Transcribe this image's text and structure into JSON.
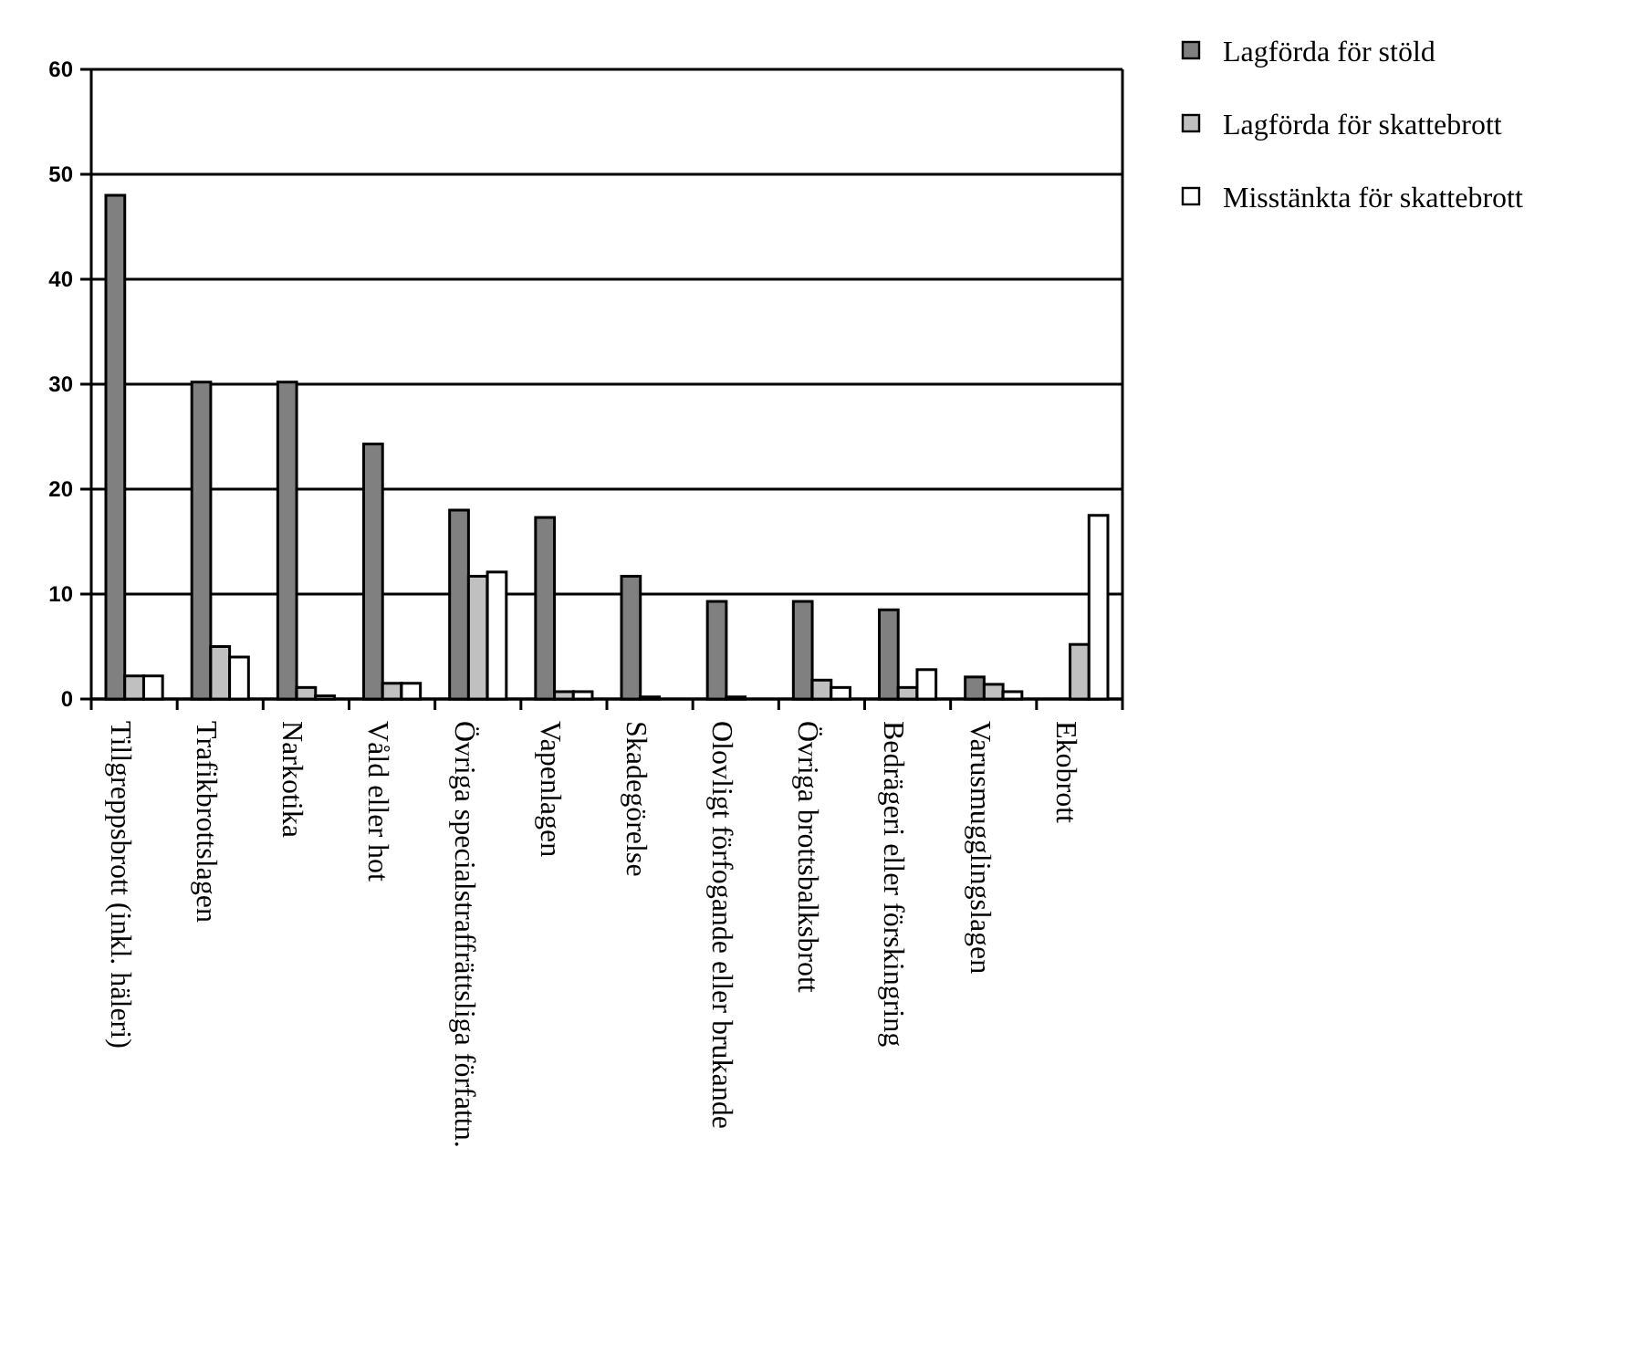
{
  "chart_data": {
    "type": "bar",
    "categories": [
      "Tillgreppsbrott (inkl. häleri)",
      "Trafikbrottslagen",
      "Narkotika",
      "Våld eller hot",
      "Övriga specialstraffrättsliga författn.",
      "Vapenlagen",
      "Skadegörelse",
      "Olovligt förfogande eller brukande",
      "Övriga brottsbalksbrott",
      "Bedrägeri eller förskingring",
      "Varusmugglingslagen",
      "Ekobrott"
    ],
    "series": [
      {
        "name": "Lagförda för stöld",
        "color": "#808080",
        "values": [
          48,
          30.2,
          30.2,
          24.3,
          18,
          17.3,
          11.7,
          9.3,
          9.3,
          8.5,
          2.1,
          0
        ]
      },
      {
        "name": "Lagförda för skattebrott",
        "color": "#c0c0c0",
        "values": [
          2.2,
          5,
          1.1,
          1.5,
          11.7,
          0.7,
          0.2,
          0.2,
          1.8,
          1.1,
          1.4,
          5.2
        ]
      },
      {
        "name": "Misstänkta för skattebrott",
        "color": "#ffffff",
        "values": [
          2.2,
          4,
          0.3,
          1.5,
          12.1,
          0.7,
          0,
          0,
          1.1,
          2.8,
          0.7,
          17.5
        ]
      }
    ],
    "ylim": [
      0,
      60
    ],
    "yticks": [
      0,
      10,
      20,
      30,
      40,
      50,
      60
    ],
    "grid": "y",
    "legend": "right"
  }
}
